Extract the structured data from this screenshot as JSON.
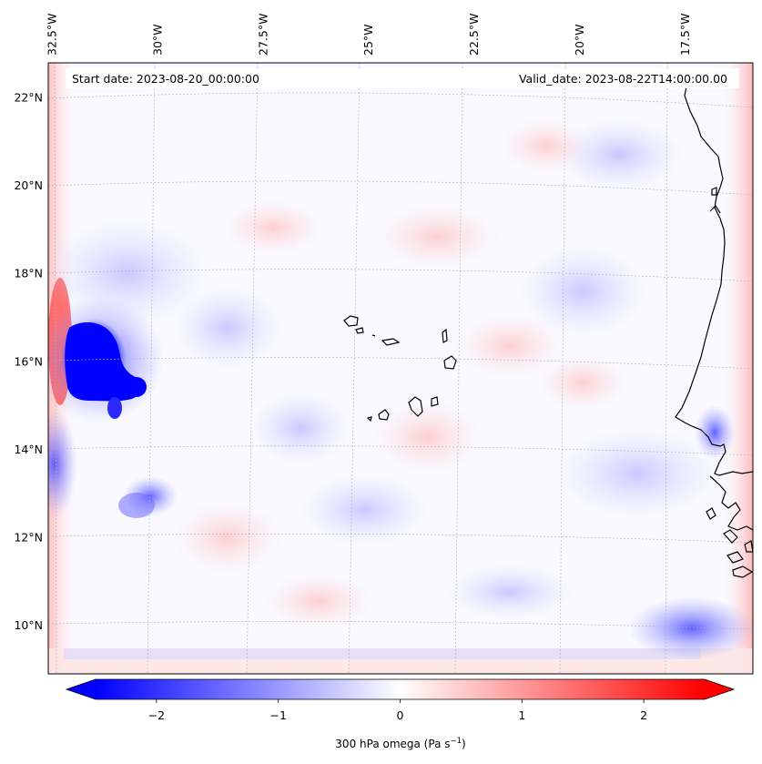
{
  "header": {
    "start_date": "Start date: 2023-08-20_00:00:00",
    "valid_date": "Valid_date: 2023-08-22T14:00:00.00"
  },
  "map": {
    "lon_labels": [
      "32.5°W",
      "30°W",
      "27.5°W",
      "25°W",
      "22.5°W",
      "20°W",
      "17.5°W"
    ],
    "lat_labels": [
      "22°N",
      "20°N",
      "18°N",
      "16°N",
      "14°N",
      "12°N",
      "10°N"
    ],
    "lon_values": [
      -32.5,
      -30,
      -27.5,
      -25,
      -22.5,
      -20,
      -17.5
    ],
    "lat_values": [
      22,
      20,
      18,
      16,
      14,
      12,
      10
    ],
    "extent": {
      "lon_min": -32.6,
      "lon_max": -15.9,
      "lat_min": 8.9,
      "lat_max": 22.8
    }
  },
  "colorbar": {
    "label": "300 hPa omega (Pa s",
    "label_exponent": "−1",
    "label_suffix": ")",
    "ticks": [
      "−2",
      "−1",
      "0",
      "1",
      "2"
    ],
    "tick_values": [
      -2,
      -1,
      0,
      1,
      2
    ],
    "vmin": -2.5,
    "vmax": 2.5,
    "levels": 40,
    "extend": "both",
    "colors": {
      "min": "#0000ff",
      "mid": "#ffffff",
      "max": "#ff0000"
    }
  },
  "features": {
    "strong_ascent_region": {
      "lat": 16.0,
      "lon": -31.5,
      "value": -2.5
    },
    "secondary_ascent_region": {
      "lat": 12.8,
      "lon": -30.0,
      "value": -1.0
    },
    "boundary_descent_strip": {
      "lat": 16.5,
      "lon": -32.5,
      "value": 1.0
    }
  }
}
